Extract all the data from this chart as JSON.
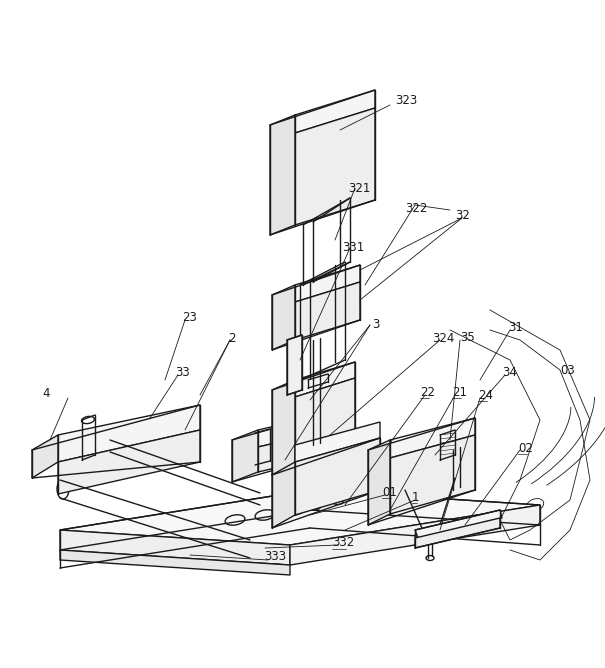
{
  "bg_color": "#ffffff",
  "line_color": "#1a1a1a",
  "lw": 1.0,
  "thin_lw": 0.6,
  "label_fs": 8.5
}
